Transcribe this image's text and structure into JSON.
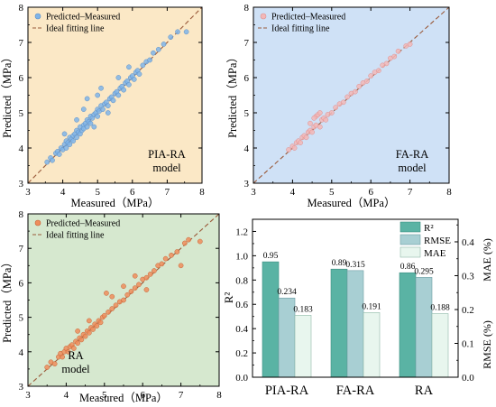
{
  "colors": {
    "pia_bg": "#fbe8c6",
    "fa_bg": "#cfe1f6",
    "ra_bg": "#d6e8cf",
    "pia_point": "#7fb4e8",
    "fa_point": "#f2b8b8",
    "ra_point": "#ee8d5c",
    "ideal_line": "#9a5a3a",
    "bar_r2": "#5ab3a4",
    "bar_rmse": "#a8cfd3",
    "bar_mae": "#e8f6ee",
    "bar_stroke": "#2f6f66"
  },
  "chart_data": [
    {
      "type": "scatter",
      "panel": "PIA-RA",
      "xlabel": "Measured（MPa）",
      "ylabel": "Predicted（MPa）",
      "xlim": [
        3,
        8
      ],
      "ylim": [
        3,
        8
      ],
      "xticks": [
        "3",
        "4",
        "5",
        "6",
        "7",
        "8"
      ],
      "yticks": [
        "3",
        "4",
        "5",
        "6",
        "7",
        "8"
      ],
      "legend": [
        "Predicted–Measured",
        "Ideal fitting line"
      ],
      "legend_position": "top-left",
      "annotation": [
        "PIA-RA",
        "model"
      ],
      "grid": false,
      "ideal_line": [
        [
          3,
          3
        ],
        [
          8,
          8
        ]
      ],
      "points": [
        [
          3.55,
          3.6
        ],
        [
          3.65,
          3.72
        ],
        [
          3.7,
          3.65
        ],
        [
          3.8,
          3.85
        ],
        [
          3.85,
          3.9
        ],
        [
          3.9,
          3.82
        ],
        [
          3.95,
          4.0
        ],
        [
          4.0,
          3.95
        ],
        [
          4.05,
          4.1
        ],
        [
          4.1,
          4.0
        ],
        [
          4.1,
          4.2
        ],
        [
          4.15,
          4.15
        ],
        [
          4.2,
          4.1
        ],
        [
          4.2,
          4.3
        ],
        [
          4.25,
          4.25
        ],
        [
          4.3,
          4.35
        ],
        [
          4.3,
          4.2
        ],
        [
          4.35,
          4.4
        ],
        [
          4.4,
          4.3
        ],
        [
          4.4,
          4.5
        ],
        [
          4.45,
          4.45
        ],
        [
          4.5,
          4.4
        ],
        [
          4.5,
          4.6
        ],
        [
          4.55,
          4.5
        ],
        [
          4.6,
          4.65
        ],
        [
          4.6,
          4.55
        ],
        [
          4.65,
          4.7
        ],
        [
          4.7,
          4.6
        ],
        [
          4.7,
          4.8
        ],
        [
          4.75,
          4.75
        ],
        [
          4.8,
          4.9
        ],
        [
          4.8,
          4.7
        ],
        [
          4.85,
          4.85
        ],
        [
          4.9,
          4.95
        ],
        [
          4.95,
          5.0
        ],
        [
          5.0,
          4.9
        ],
        [
          5.0,
          5.1
        ],
        [
          5.05,
          5.05
        ],
        [
          5.1,
          5.2
        ],
        [
          5.15,
          5.1
        ],
        [
          5.2,
          5.25
        ],
        [
          5.25,
          5.3
        ],
        [
          5.3,
          5.2
        ],
        [
          5.35,
          5.4
        ],
        [
          5.4,
          5.45
        ],
        [
          5.45,
          5.35
        ],
        [
          5.5,
          5.55
        ],
        [
          5.55,
          5.6
        ],
        [
          5.6,
          5.5
        ],
        [
          5.65,
          5.7
        ],
        [
          5.7,
          5.75
        ],
        [
          5.75,
          5.65
        ],
        [
          5.8,
          5.85
        ],
        [
          5.85,
          5.9
        ],
        [
          5.9,
          5.8
        ],
        [
          5.95,
          6.0
        ],
        [
          6.0,
          6.05
        ],
        [
          6.05,
          5.95
        ],
        [
          6.1,
          6.15
        ],
        [
          6.15,
          6.2
        ],
        [
          6.2,
          6.1
        ],
        [
          6.3,
          6.35
        ],
        [
          6.4,
          6.45
        ],
        [
          6.5,
          6.5
        ],
        [
          6.6,
          6.7
        ],
        [
          6.75,
          6.8
        ],
        [
          6.9,
          6.95
        ],
        [
          7.1,
          7.15
        ],
        [
          7.3,
          7.3
        ],
        [
          7.55,
          7.3
        ],
        [
          4.6,
          5.1
        ],
        [
          4.7,
          5.4
        ],
        [
          5.1,
          5.7
        ],
        [
          5.3,
          5.0
        ],
        [
          4.4,
          4.8
        ],
        [
          5.6,
          6.0
        ],
        [
          5.9,
          6.3
        ],
        [
          4.9,
          4.6
        ],
        [
          4.05,
          4.4
        ],
        [
          5.0,
          5.5
        ]
      ]
    },
    {
      "type": "scatter",
      "panel": "FA-RA",
      "xlabel": "Measured（MPa）",
      "ylabel": "Predicted（MPa）",
      "xlim": [
        3,
        8
      ],
      "ylim": [
        3,
        8
      ],
      "xticks": [
        "3",
        "4",
        "5",
        "6",
        "7",
        "8"
      ],
      "yticks": [
        "3",
        "4",
        "5",
        "6",
        "7",
        "8"
      ],
      "legend": [
        "Predicted–Measured",
        "Ideal fitting line"
      ],
      "legend_position": "top-left",
      "annotation": [
        "FA-RA",
        "model"
      ],
      "grid": false,
      "ideal_line": [
        [
          3,
          3
        ],
        [
          8,
          8
        ]
      ],
      "points": [
        [
          3.9,
          3.95
        ],
        [
          4.0,
          4.05
        ],
        [
          4.05,
          4.0
        ],
        [
          4.1,
          4.15
        ],
        [
          4.15,
          4.2
        ],
        [
          4.2,
          4.15
        ],
        [
          4.25,
          4.3
        ],
        [
          4.3,
          4.35
        ],
        [
          4.35,
          4.3
        ],
        [
          4.4,
          4.45
        ],
        [
          4.45,
          4.5
        ],
        [
          4.5,
          4.45
        ],
        [
          4.55,
          4.6
        ],
        [
          4.6,
          4.65
        ],
        [
          4.6,
          4.9
        ],
        [
          4.65,
          4.95
        ],
        [
          4.7,
          4.6
        ],
        [
          4.75,
          4.8
        ],
        [
          4.8,
          4.85
        ],
        [
          4.85,
          4.8
        ],
        [
          4.9,
          4.95
        ],
        [
          5.0,
          5.0
        ],
        [
          5.1,
          5.15
        ],
        [
          5.2,
          5.25
        ],
        [
          5.3,
          5.3
        ],
        [
          5.4,
          5.45
        ],
        [
          5.5,
          5.55
        ],
        [
          5.6,
          5.6
        ],
        [
          5.7,
          5.75
        ],
        [
          5.8,
          5.85
        ],
        [
          5.9,
          5.9
        ],
        [
          6.0,
          6.05
        ],
        [
          6.1,
          6.15
        ],
        [
          6.2,
          6.2
        ],
        [
          6.3,
          6.35
        ],
        [
          6.4,
          6.4
        ],
        [
          6.5,
          6.55
        ],
        [
          6.6,
          6.6
        ],
        [
          6.7,
          6.75
        ],
        [
          6.9,
          6.9
        ],
        [
          7.0,
          6.95
        ],
        [
          4.45,
          4.7
        ],
        [
          4.55,
          4.85
        ],
        [
          4.7,
          5.0
        ]
      ]
    },
    {
      "type": "scatter",
      "panel": "RA",
      "xlabel": "Measured（MPa）",
      "ylabel": "Predicted（MPa）",
      "xlim": [
        3,
        8
      ],
      "ylim": [
        3,
        8
      ],
      "xticks": [
        "3",
        "4",
        "5",
        "6",
        "7",
        "8"
      ],
      "yticks": [
        "3",
        "4",
        "5",
        "6",
        "7",
        "8"
      ],
      "legend": [
        "Predicted–Measured",
        "Ideal fitting line"
      ],
      "legend_position": "top-left",
      "annotation": [
        "RA",
        "model"
      ],
      "grid": false,
      "ideal_line": [
        [
          3,
          3
        ],
        [
          8,
          8
        ]
      ],
      "points": [
        [
          3.5,
          3.55
        ],
        [
          3.6,
          3.7
        ],
        [
          3.7,
          3.65
        ],
        [
          3.8,
          3.85
        ],
        [
          3.85,
          3.95
        ],
        [
          3.9,
          3.85
        ],
        [
          3.95,
          4.0
        ],
        [
          4.0,
          4.1
        ],
        [
          4.05,
          4.0
        ],
        [
          4.1,
          4.15
        ],
        [
          4.15,
          4.2
        ],
        [
          4.2,
          4.1
        ],
        [
          4.25,
          4.3
        ],
        [
          4.3,
          4.25
        ],
        [
          4.35,
          4.4
        ],
        [
          4.4,
          4.35
        ],
        [
          4.45,
          4.5
        ],
        [
          4.5,
          4.45
        ],
        [
          4.55,
          4.6
        ],
        [
          4.6,
          4.55
        ],
        [
          4.65,
          4.7
        ],
        [
          4.7,
          4.65
        ],
        [
          4.75,
          4.8
        ],
        [
          4.8,
          4.75
        ],
        [
          4.85,
          4.9
        ],
        [
          4.9,
          4.85
        ],
        [
          4.95,
          5.0
        ],
        [
          5.0,
          5.05
        ],
        [
          5.05,
          5.7
        ],
        [
          5.1,
          5.15
        ],
        [
          5.2,
          5.25
        ],
        [
          5.3,
          5.35
        ],
        [
          5.4,
          5.45
        ],
        [
          5.5,
          5.5
        ],
        [
          5.6,
          5.65
        ],
        [
          5.7,
          5.75
        ],
        [
          5.8,
          5.85
        ],
        [
          5.9,
          5.95
        ],
        [
          6.0,
          6.1
        ],
        [
          6.1,
          6.15
        ],
        [
          6.2,
          6.25
        ],
        [
          6.3,
          6.35
        ],
        [
          6.4,
          6.5
        ],
        [
          6.5,
          6.55
        ],
        [
          6.6,
          6.7
        ],
        [
          6.75,
          6.8
        ],
        [
          6.9,
          6.9
        ],
        [
          7.0,
          6.5
        ],
        [
          7.1,
          7.15
        ],
        [
          7.2,
          7.25
        ],
        [
          7.5,
          7.2
        ],
        [
          4.3,
          4.6
        ],
        [
          4.6,
          4.9
        ],
        [
          5.2,
          5.6
        ],
        [
          5.5,
          5.9
        ],
        [
          5.8,
          6.2
        ],
        [
          6.1,
          5.8
        ]
      ]
    },
    {
      "type": "bar",
      "panel": "metrics",
      "categories": [
        "PIA-RA",
        "FA-RA",
        "RA"
      ],
      "series": [
        {
          "name": "R²",
          "axis": "left",
          "values": [
            0.95,
            0.89,
            0.86
          ],
          "labels": [
            "0.95",
            "0.89",
            "0.86"
          ]
        },
        {
          "name": "RMSE",
          "axis": "right",
          "values": [
            0.234,
            0.315,
            0.295
          ],
          "labels": [
            "0.234",
            "0.315",
            "0.295"
          ]
        },
        {
          "name": "MAE",
          "axis": "right",
          "values": [
            0.183,
            0.191,
            0.188
          ],
          "labels": [
            "0.183",
            "0.191",
            "0.188"
          ]
        }
      ],
      "ylabel_left": "R²",
      "ylabel_right": [
        "RMSE (%)",
        "MAE (%)"
      ],
      "ylim_left": [
        0,
        1.3
      ],
      "ylim_right": [
        0,
        0.4666
      ],
      "yticks_left": [
        "0.0",
        "0.2",
        "0.4",
        "0.6",
        "0.8",
        "1.0",
        "1.2"
      ],
      "yticks_right": [
        "0.0",
        "0.1",
        "0.2",
        "0.3",
        "0.4"
      ],
      "legend_position": "top-right",
      "grid": false
    }
  ]
}
